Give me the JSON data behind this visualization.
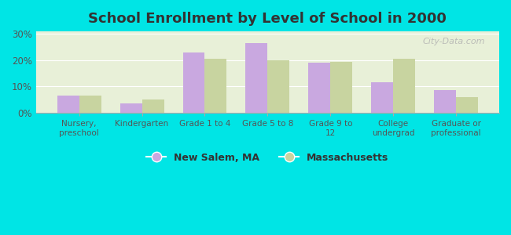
{
  "title": "School Enrollment by Level of School in 2000",
  "categories": [
    "Nursery,\npreschool",
    "Kindergarten",
    "Grade 1 to 4",
    "Grade 5 to 8",
    "Grade 9 to\n12",
    "College\nundergrad",
    "Graduate or\nprofessional"
  ],
  "new_salem": [
    6.5,
    3.5,
    23.0,
    26.5,
    19.0,
    11.5,
    8.5
  ],
  "massachusetts": [
    6.5,
    5.0,
    20.5,
    20.0,
    19.5,
    20.5,
    6.0
  ],
  "new_salem_color": "#c9a8e0",
  "massachusetts_color": "#c8d4a0",
  "background_outer": "#00e5e5",
  "background_inner": "#e8f0d8",
  "yticks": [
    0,
    10,
    20,
    30
  ],
  "ylim": [
    0,
    31
  ],
  "legend_new_salem": "New Salem, MA",
  "legend_massachusetts": "Massachusetts",
  "bar_width": 0.35
}
